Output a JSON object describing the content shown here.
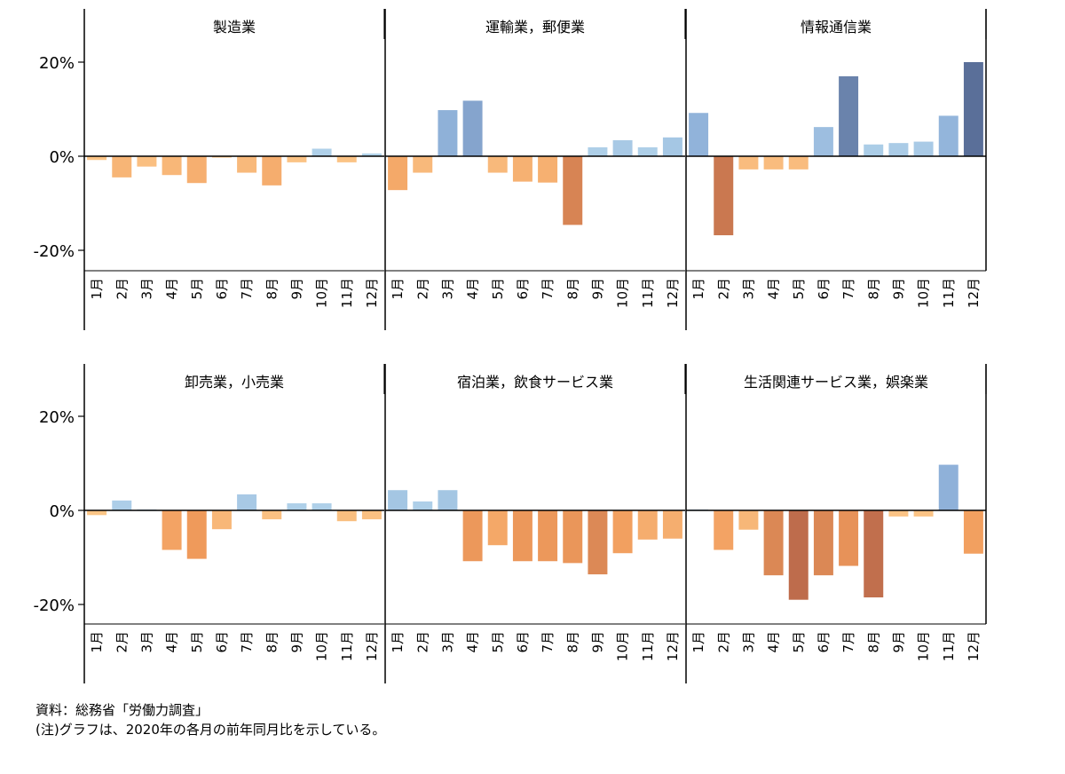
{
  "notes": {
    "source": "資料：総務省「労働力調査」",
    "note": "(注)グラフは、2020年の各月の前年同月比を示している。"
  },
  "chart_data": {
    "type": "bar",
    "categories": [
      "1月",
      "2月",
      "3月",
      "4月",
      "5月",
      "6月",
      "7月",
      "8月",
      "9月",
      "10月",
      "11月",
      "12月"
    ],
    "y_ticks": [
      -20,
      0,
      20
    ],
    "y_tick_labels": [
      "-20%",
      "0%",
      "20%"
    ],
    "ylim": [
      -25,
      30
    ],
    "grid": false,
    "color_scale": {
      "positive": "#4c72b0",
      "negative": "#dd8452",
      "diverging": true
    },
    "panels": [
      {
        "title": "製造業",
        "values": [
          -0.8,
          -4.5,
          -2.2,
          -4.0,
          -5.7,
          -0.3,
          -3.5,
          -6.2,
          -1.3,
          1.6,
          -1.3,
          0.6
        ]
      },
      {
        "title": "運輸業，郵便業",
        "values": [
          -7.2,
          -3.5,
          9.8,
          11.8,
          -3.5,
          -5.4,
          -5.6,
          -14.6,
          1.9,
          3.4,
          1.9,
          4.0
        ]
      },
      {
        "title": "情報通信業",
        "values": [
          9.2,
          -16.8,
          -2.8,
          -2.8,
          -2.8,
          6.2,
          17.0,
          2.5,
          2.8,
          3.1,
          8.6,
          20.0
        ]
      },
      {
        "title": "卸売業，小売業",
        "values": [
          -1.0,
          2.1,
          0.2,
          -8.4,
          -10.3,
          -4.0,
          3.4,
          -1.9,
          1.5,
          1.5,
          -2.3,
          -1.9
        ]
      },
      {
        "title": "宿泊業，飲食サービス業",
        "values": [
          4.3,
          1.9,
          4.3,
          -10.8,
          -7.4,
          -10.8,
          -10.8,
          -11.2,
          -13.6,
          -9.1,
          -6.2,
          -6.0
        ]
      },
      {
        "title": "生活関連サービス業，娯楽業",
        "values": [
          0.2,
          -8.4,
          -4.1,
          -13.8,
          -19.0,
          -13.8,
          -11.8,
          -18.5,
          -1.3,
          -1.3,
          9.7,
          -9.2
        ]
      }
    ]
  }
}
